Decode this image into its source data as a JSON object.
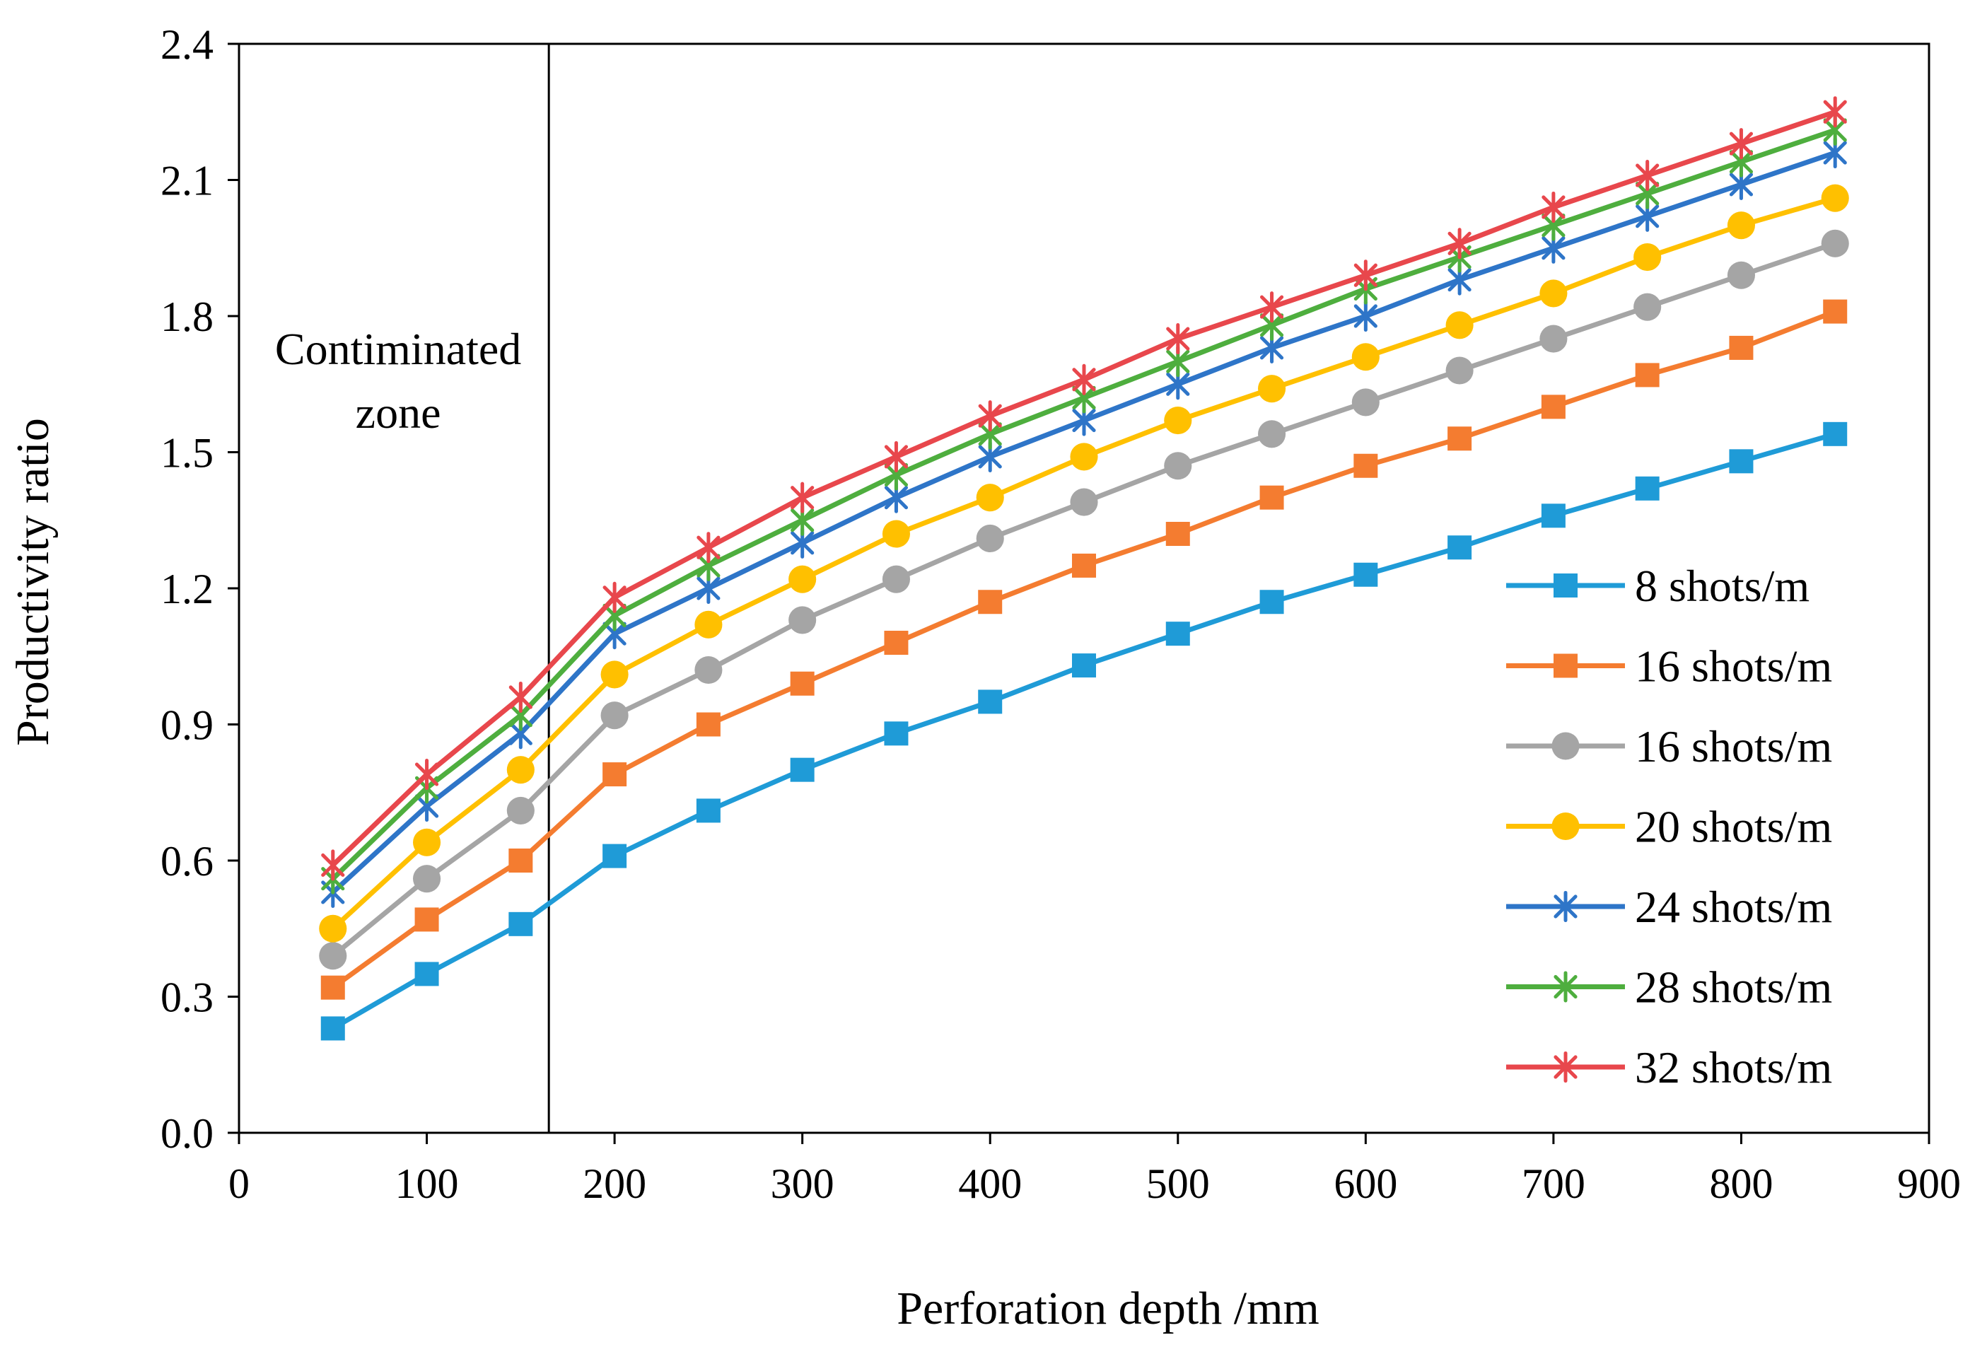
{
  "chart_data": {
    "type": "line",
    "title": "",
    "xlabel": "Perforation depth /mm",
    "ylabel": "Productivity ratio",
    "xlim": [
      0,
      900
    ],
    "ylim": [
      0.0,
      2.4
    ],
    "xticks": [
      0,
      100,
      200,
      300,
      400,
      500,
      600,
      700,
      800,
      900
    ],
    "yticks": [
      0.0,
      0.3,
      0.6,
      0.9,
      1.2,
      1.5,
      1.8,
      2.1,
      2.4
    ],
    "ytick_labels": [
      "0.0",
      "0.3",
      "0.6",
      "0.9",
      "1.2",
      "1.5",
      "1.8",
      "2.1",
      "2.4"
    ],
    "grid": false,
    "legend_position": "bottom-right",
    "x": [
      50,
      100,
      150,
      200,
      250,
      300,
      350,
      400,
      450,
      500,
      550,
      600,
      650,
      700,
      750,
      800,
      850
    ],
    "annotation": {
      "line_x": 165,
      "text_lines": [
        "Contiminated",
        "zone"
      ]
    },
    "series": [
      {
        "name": "8 shots/m",
        "color": "#1F9BD7",
        "marker": "square",
        "values": [
          0.23,
          0.35,
          0.46,
          0.61,
          0.71,
          0.8,
          0.88,
          0.95,
          1.03,
          1.1,
          1.17,
          1.23,
          1.29,
          1.36,
          1.42,
          1.48,
          1.54
        ]
      },
      {
        "name": "16 shots/m",
        "color": "#F47C30",
        "marker": "square",
        "values": [
          0.32,
          0.47,
          0.6,
          0.79,
          0.9,
          0.99,
          1.08,
          1.17,
          1.25,
          1.32,
          1.4,
          1.47,
          1.53,
          1.6,
          1.67,
          1.73,
          1.81
        ]
      },
      {
        "name": "16 shots/m",
        "color": "#A5A5A5",
        "marker": "circle",
        "values": [
          0.39,
          0.56,
          0.71,
          0.92,
          1.02,
          1.13,
          1.22,
          1.31,
          1.39,
          1.47,
          1.54,
          1.61,
          1.68,
          1.75,
          1.82,
          1.89,
          1.96
        ]
      },
      {
        "name": "20 shots/m",
        "color": "#FFC000",
        "marker": "circle",
        "values": [
          0.45,
          0.64,
          0.8,
          1.01,
          1.12,
          1.22,
          1.32,
          1.4,
          1.49,
          1.57,
          1.64,
          1.71,
          1.78,
          1.85,
          1.93,
          2.0,
          2.06
        ]
      },
      {
        "name": "24 shots/m",
        "color": "#2E75C8",
        "marker": "asterisk",
        "values": [
          0.53,
          0.72,
          0.88,
          1.1,
          1.2,
          1.3,
          1.4,
          1.49,
          1.57,
          1.65,
          1.73,
          1.8,
          1.88,
          1.95,
          2.02,
          2.09,
          2.16
        ]
      },
      {
        "name": "28 shots/m",
        "color": "#4EAE3E",
        "marker": "asterisk",
        "values": [
          0.56,
          0.76,
          0.92,
          1.14,
          1.25,
          1.35,
          1.45,
          1.54,
          1.62,
          1.7,
          1.78,
          1.86,
          1.93,
          2.0,
          2.07,
          2.14,
          2.21
        ]
      },
      {
        "name": "32 shots/m",
        "color": "#E8474C",
        "marker": "asterisk",
        "values": [
          0.59,
          0.79,
          0.96,
          1.18,
          1.29,
          1.4,
          1.49,
          1.58,
          1.66,
          1.75,
          1.82,
          1.89,
          1.96,
          2.04,
          2.11,
          2.18,
          2.25
        ]
      }
    ]
  }
}
